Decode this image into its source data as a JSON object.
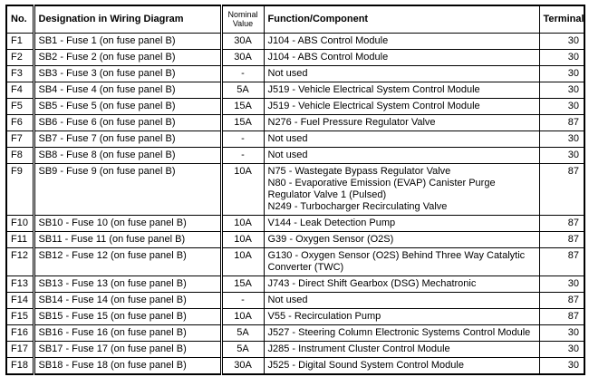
{
  "table": {
    "headers": {
      "no": "No.",
      "designation": "Designation in Wiring Diagram",
      "nominal_value": "Nominal Value",
      "function": "Function/Component",
      "terminal": "Terminal"
    },
    "rows": [
      {
        "no": "F1",
        "designation": "SB1 - Fuse 1 (on fuse panel B)",
        "value": "30A",
        "function": [
          "J104 - ABS Control Module"
        ],
        "terminal": "30"
      },
      {
        "no": "F2",
        "designation": "SB2 - Fuse 2 (on fuse panel B)",
        "value": "30A",
        "function": [
          "J104 - ABS Control Module"
        ],
        "terminal": "30"
      },
      {
        "no": "F3",
        "designation": "SB3 - Fuse 3 (on fuse panel B)",
        "value": "-",
        "function": [
          "Not used"
        ],
        "terminal": "30"
      },
      {
        "no": "F4",
        "designation": "SB4 - Fuse 4 (on fuse panel B)",
        "value": "5A",
        "function": [
          "J519 - Vehicle Electrical System Control Module"
        ],
        "terminal": "30"
      },
      {
        "no": "F5",
        "designation": "SB5 - Fuse 5 (on fuse panel B)",
        "value": "15A",
        "function": [
          "J519 - Vehicle Electrical System Control Module"
        ],
        "terminal": "30"
      },
      {
        "no": "F6",
        "designation": "SB6 - Fuse 6 (on fuse panel B)",
        "value": "15A",
        "function": [
          "N276 - Fuel Pressure Regulator Valve"
        ],
        "terminal": "87"
      },
      {
        "no": "F7",
        "designation": "SB7 - Fuse 7 (on fuse panel B)",
        "value": "-",
        "function": [
          "Not used"
        ],
        "terminal": "30"
      },
      {
        "no": "F8",
        "designation": "SB8 - Fuse 8 (on fuse panel B)",
        "value": "-",
        "function": [
          "Not used"
        ],
        "terminal": "30"
      },
      {
        "no": "F9",
        "designation": "SB9 - Fuse 9 (on fuse panel B)",
        "value": "10A",
        "function": [
          "N75 - Wastegate Bypass Regulator Valve",
          "N80 - Evaporative Emission (EVAP) Canister Purge Regulator Valve 1 (Pulsed)",
          "N249 - Turbocharger Recirculating Valve"
        ],
        "terminal": "87"
      },
      {
        "no": "F10",
        "designation": "SB10 - Fuse 10 (on fuse panel B)",
        "value": "10A",
        "function": [
          "V144 - Leak Detection Pump"
        ],
        "terminal": "87"
      },
      {
        "no": "F11",
        "designation": "SB11 - Fuse 11 (on fuse panel B)",
        "value": "10A",
        "function": [
          "G39 - Oxygen Sensor (O2S)"
        ],
        "terminal": "87"
      },
      {
        "no": "F12",
        "designation": "SB12 - Fuse 12 (on fuse panel B)",
        "value": "10A",
        "function": [
          "G130 - Oxygen Sensor (O2S) Behind Three Way Catalytic Converter (TWC)"
        ],
        "terminal": "87"
      },
      {
        "no": "F13",
        "designation": "SB13 - Fuse 13 (on fuse panel B)",
        "value": "15A",
        "function": [
          "J743 - Direct Shift Gearbox (DSG) Mechatronic"
        ],
        "terminal": "30"
      },
      {
        "no": "F14",
        "designation": "SB14 - Fuse 14 (on fuse panel B)",
        "value": "-",
        "function": [
          "Not used"
        ],
        "terminal": "87"
      },
      {
        "no": "F15",
        "designation": "SB15 - Fuse 15 (on fuse panel B)",
        "value": "10A",
        "function": [
          "V55 - Recirculation Pump"
        ],
        "terminal": "87"
      },
      {
        "no": "F16",
        "designation": "SB16 - Fuse 16 (on fuse panel B)",
        "value": "5A",
        "function": [
          "J527 - Steering Column Electronic Systems Control Module"
        ],
        "terminal": "30"
      },
      {
        "no": "F17",
        "designation": "SB17 - Fuse 17 (on fuse panel B)",
        "value": "5A",
        "function": [
          "J285 - Instrument Cluster Control Module"
        ],
        "terminal": "30"
      },
      {
        "no": "F18",
        "designation": "SB18 - Fuse 18 (on fuse panel B)",
        "value": "30A",
        "function": [
          "J525 - Digital Sound System Control Module"
        ],
        "terminal": "30"
      }
    ]
  }
}
